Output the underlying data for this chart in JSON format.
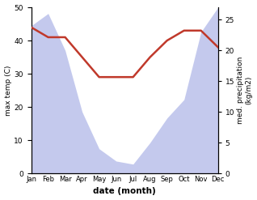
{
  "months": [
    "Jan",
    "Feb",
    "Mar",
    "Apr",
    "May",
    "Jun",
    "Jul",
    "Aug",
    "Sep",
    "Oct",
    "Nov",
    "Dec"
  ],
  "max_temp": [
    44,
    41,
    41,
    35,
    29,
    29,
    29,
    35,
    40,
    43,
    43,
    38
  ],
  "precipitation": [
    24,
    26,
    20,
    10,
    4,
    2,
    1.5,
    5,
    9,
    12,
    23,
    27
  ],
  "temp_color": "#c0392b",
  "precip_fill_color": "#b0b8e8",
  "xlabel": "date (month)",
  "ylabel_left": "max temp (C)",
  "ylabel_right": "med. precipitation\n(kg/m2)",
  "ylim_left": [
    0,
    50
  ],
  "ylim_right": [
    0,
    27
  ],
  "bg_color": "#ffffff"
}
